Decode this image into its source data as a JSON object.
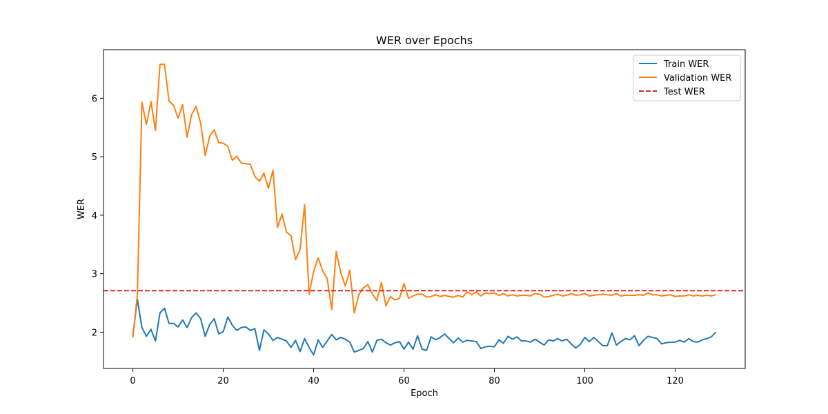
{
  "chart_data": {
    "type": "line",
    "title": "WER over Epochs",
    "xlabel": "Epoch",
    "ylabel": "WER",
    "xlim": [
      -6.5,
      135.5
    ],
    "ylim": [
      1.38,
      6.83
    ],
    "xticks": [
      0,
      20,
      40,
      60,
      80,
      100,
      120
    ],
    "yticks": [
      2,
      3,
      4,
      5,
      6
    ],
    "grid": false,
    "legend_position": "top-right",
    "series": [
      {
        "name": "Train WER",
        "color": "#1f77b4",
        "x_start": 0,
        "values": [
          1.95,
          2.56,
          2.08,
          1.93,
          2.05,
          1.85,
          2.33,
          2.41,
          2.15,
          2.15,
          2.09,
          2.21,
          2.08,
          2.25,
          2.33,
          2.23,
          1.93,
          2.13,
          2.23,
          1.97,
          2.01,
          2.26,
          2.12,
          2.03,
          2.08,
          2.09,
          2.03,
          2.06,
          1.69,
          2.04,
          1.97,
          1.86,
          1.91,
          1.88,
          1.85,
          1.74,
          1.86,
          1.67,
          1.89,
          1.74,
          1.61,
          1.87,
          1.74,
          1.85,
          1.96,
          1.87,
          1.91,
          1.88,
          1.83,
          1.66,
          1.69,
          1.72,
          1.84,
          1.66,
          1.86,
          1.88,
          1.82,
          1.78,
          1.82,
          1.84,
          1.71,
          1.83,
          1.71,
          1.94,
          1.71,
          1.69,
          1.92,
          1.87,
          1.91,
          1.97,
          1.89,
          1.82,
          1.9,
          1.83,
          1.86,
          1.85,
          1.84,
          1.72,
          1.75,
          1.76,
          1.75,
          1.87,
          1.81,
          1.93,
          1.88,
          1.92,
          1.85,
          1.85,
          1.83,
          1.88,
          1.83,
          1.78,
          1.87,
          1.85,
          1.89,
          1.85,
          1.88,
          1.8,
          1.73,
          1.79,
          1.91,
          1.84,
          1.91,
          1.84,
          1.77,
          1.77,
          1.99,
          1.78,
          1.84,
          1.89,
          1.87,
          1.94,
          1.77,
          1.86,
          1.93,
          1.91,
          1.89,
          1.8,
          1.82,
          1.83,
          1.83,
          1.86,
          1.83,
          1.89,
          1.84,
          1.83,
          1.87,
          1.89,
          1.92,
          2.0
        ]
      },
      {
        "name": "Validation WER",
        "color": "#ff7f0e",
        "x_start": 0,
        "values": [
          1.91,
          2.65,
          5.93,
          5.55,
          5.94,
          5.45,
          6.58,
          6.58,
          5.95,
          5.88,
          5.66,
          5.89,
          5.33,
          5.72,
          5.86,
          5.57,
          5.02,
          5.35,
          5.46,
          5.24,
          5.23,
          5.18,
          4.94,
          5.01,
          4.89,
          4.88,
          4.87,
          4.66,
          4.58,
          4.72,
          4.46,
          4.77,
          3.79,
          4.02,
          3.71,
          3.65,
          3.24,
          3.41,
          4.18,
          2.65,
          3.04,
          3.27,
          3.05,
          2.92,
          2.39,
          3.38,
          3.02,
          2.79,
          3.06,
          2.33,
          2.64,
          2.76,
          2.81,
          2.66,
          2.54,
          2.85,
          2.45,
          2.61,
          2.55,
          2.58,
          2.83,
          2.58,
          2.62,
          2.65,
          2.65,
          2.6,
          2.61,
          2.64,
          2.61,
          2.63,
          2.61,
          2.6,
          2.63,
          2.6,
          2.69,
          2.64,
          2.69,
          2.62,
          2.67,
          2.66,
          2.67,
          2.63,
          2.66,
          2.62,
          2.64,
          2.62,
          2.63,
          2.63,
          2.62,
          2.66,
          2.65,
          2.6,
          2.61,
          2.63,
          2.65,
          2.62,
          2.63,
          2.66,
          2.63,
          2.64,
          2.66,
          2.62,
          2.63,
          2.64,
          2.65,
          2.64,
          2.63,
          2.66,
          2.62,
          2.63,
          2.63,
          2.63,
          2.64,
          2.63,
          2.67,
          2.64,
          2.64,
          2.62,
          2.63,
          2.64,
          2.61,
          2.62,
          2.62,
          2.64,
          2.62,
          2.63,
          2.62,
          2.63,
          2.62,
          2.64
        ]
      },
      {
        "name": "Test WER",
        "color": "#d62728",
        "style": "dashed",
        "type": "hline",
        "value": 2.71
      }
    ]
  }
}
